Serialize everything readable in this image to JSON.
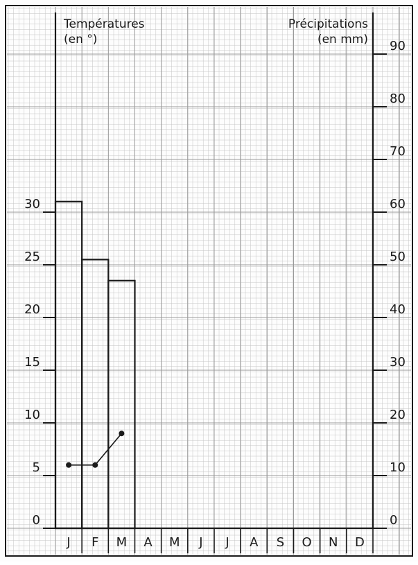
{
  "chart_data": {
    "type": "climograph",
    "left_axis_title": "Températures",
    "left_axis_unit": "(en °)",
    "right_axis_title": "Précipitations",
    "right_axis_unit": "(en mm)",
    "left_ticks": [
      "0",
      "5",
      "10",
      "15",
      "20",
      "25",
      "30"
    ],
    "right_ticks": [
      "0",
      "10",
      "20",
      "30",
      "40",
      "50",
      "60",
      "70",
      "80",
      "90"
    ],
    "categories": [
      "J",
      "F",
      "M",
      "A",
      "M",
      "J",
      "J",
      "A",
      "S",
      "O",
      "N",
      "D"
    ],
    "precipitation_mm": [
      62,
      51,
      47,
      null,
      null,
      null,
      null,
      null,
      null,
      null,
      null,
      null
    ],
    "temperature_deg": [
      6,
      6,
      9,
      null,
      null,
      null,
      null,
      null,
      null,
      null,
      null,
      null
    ],
    "temperature_ylim": [
      0,
      30
    ],
    "precipitation_ylim": [
      0,
      90
    ],
    "grid": true,
    "colors": {
      "ink": "#1a1a1a",
      "grid": "#c4c4c4",
      "paper": "#fdfdfd"
    }
  }
}
